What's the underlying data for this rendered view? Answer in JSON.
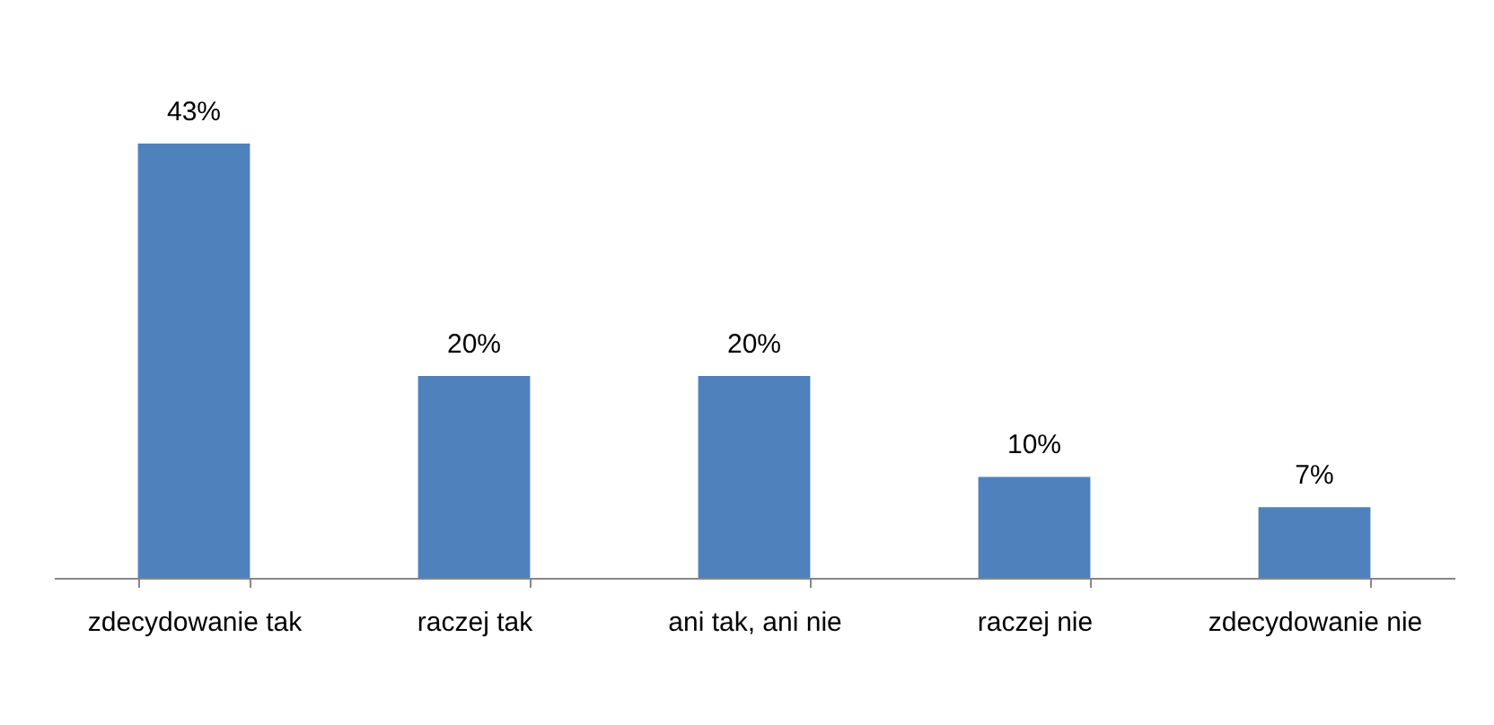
{
  "chart_data": {
    "type": "bar",
    "categories": [
      "zdecydowanie tak",
      "raczej tak",
      "ani tak, ani nie",
      "raczej nie",
      "zdecydowanie nie"
    ],
    "values": [
      43,
      20,
      20,
      10,
      7
    ],
    "value_labels": [
      "43%",
      "20%",
      "20%",
      "10%",
      "7%"
    ],
    "color": "#4f81bd"
  }
}
